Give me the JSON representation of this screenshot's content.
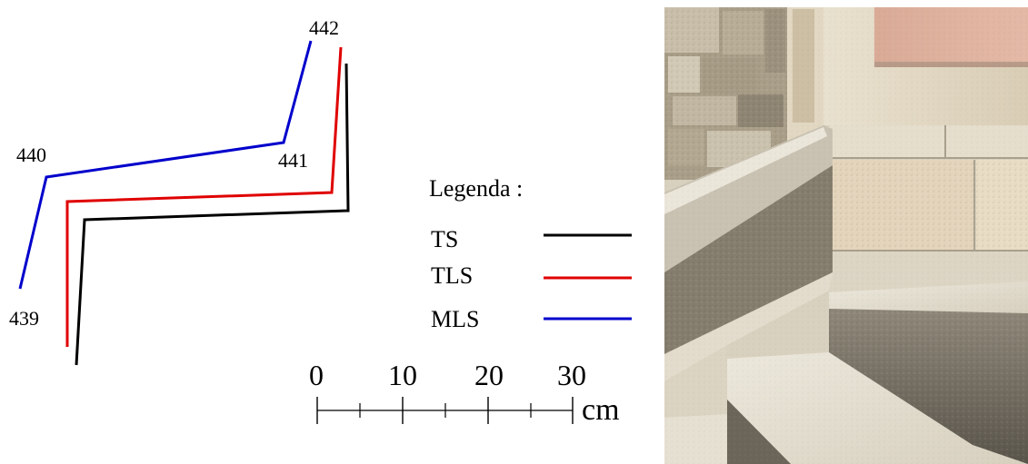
{
  "diagram": {
    "point_labels": [
      {
        "id": "439",
        "text": "439"
      },
      {
        "id": "440",
        "text": "440"
      },
      {
        "id": "441",
        "text": "441"
      },
      {
        "id": "442",
        "text": "442"
      }
    ],
    "profiles": [
      {
        "id": "TS",
        "color": "#000000"
      },
      {
        "id": "TLS",
        "color": "#e00000"
      },
      {
        "id": "MLS",
        "color": "#0000cc"
      }
    ]
  },
  "legend": {
    "title": "Legenda :",
    "items": [
      {
        "label": "TS",
        "color": "#000000"
      },
      {
        "label": "TLS",
        "color": "#e00000"
      },
      {
        "label": "MLS",
        "color": "#0000cc"
      }
    ]
  },
  "scale_bar": {
    "labels": [
      "0",
      "10",
      "20",
      "30"
    ],
    "unit": "cm"
  },
  "photo": {
    "subject": "stone staircase with balustrade corner",
    "colors": {
      "light_stone": "#e8e2d2",
      "mid_stone": "#cfc6b0",
      "dark_stone": "#8e8676",
      "shadow": "#4a4740",
      "pink_wall": "#d8a894",
      "wall_block": "#b9ad95"
    }
  }
}
